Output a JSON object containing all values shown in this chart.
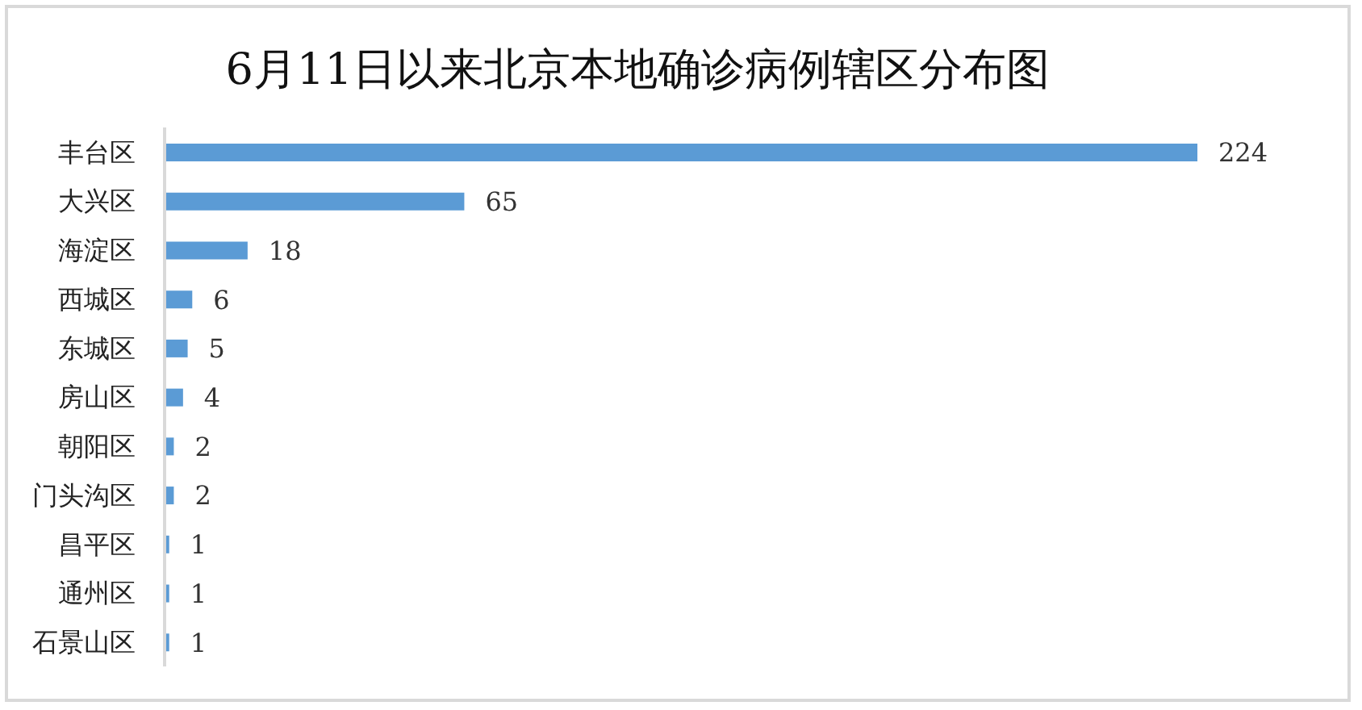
{
  "chart_data": {
    "type": "bar",
    "orientation": "horizontal",
    "title": "6月11日以来北京本地确诊病例辖区分布图",
    "categories": [
      "丰台区",
      "大兴区",
      "海淀区",
      "西城区",
      "东城区",
      "房山区",
      "朝阳区",
      "门头沟区",
      "昌平区",
      "通州区",
      "石景山区"
    ],
    "values": [
      224,
      65,
      18,
      6,
      5,
      4,
      2,
      2,
      1,
      1,
      1
    ],
    "color": "#5b9bd5",
    "data_labels": true
  }
}
